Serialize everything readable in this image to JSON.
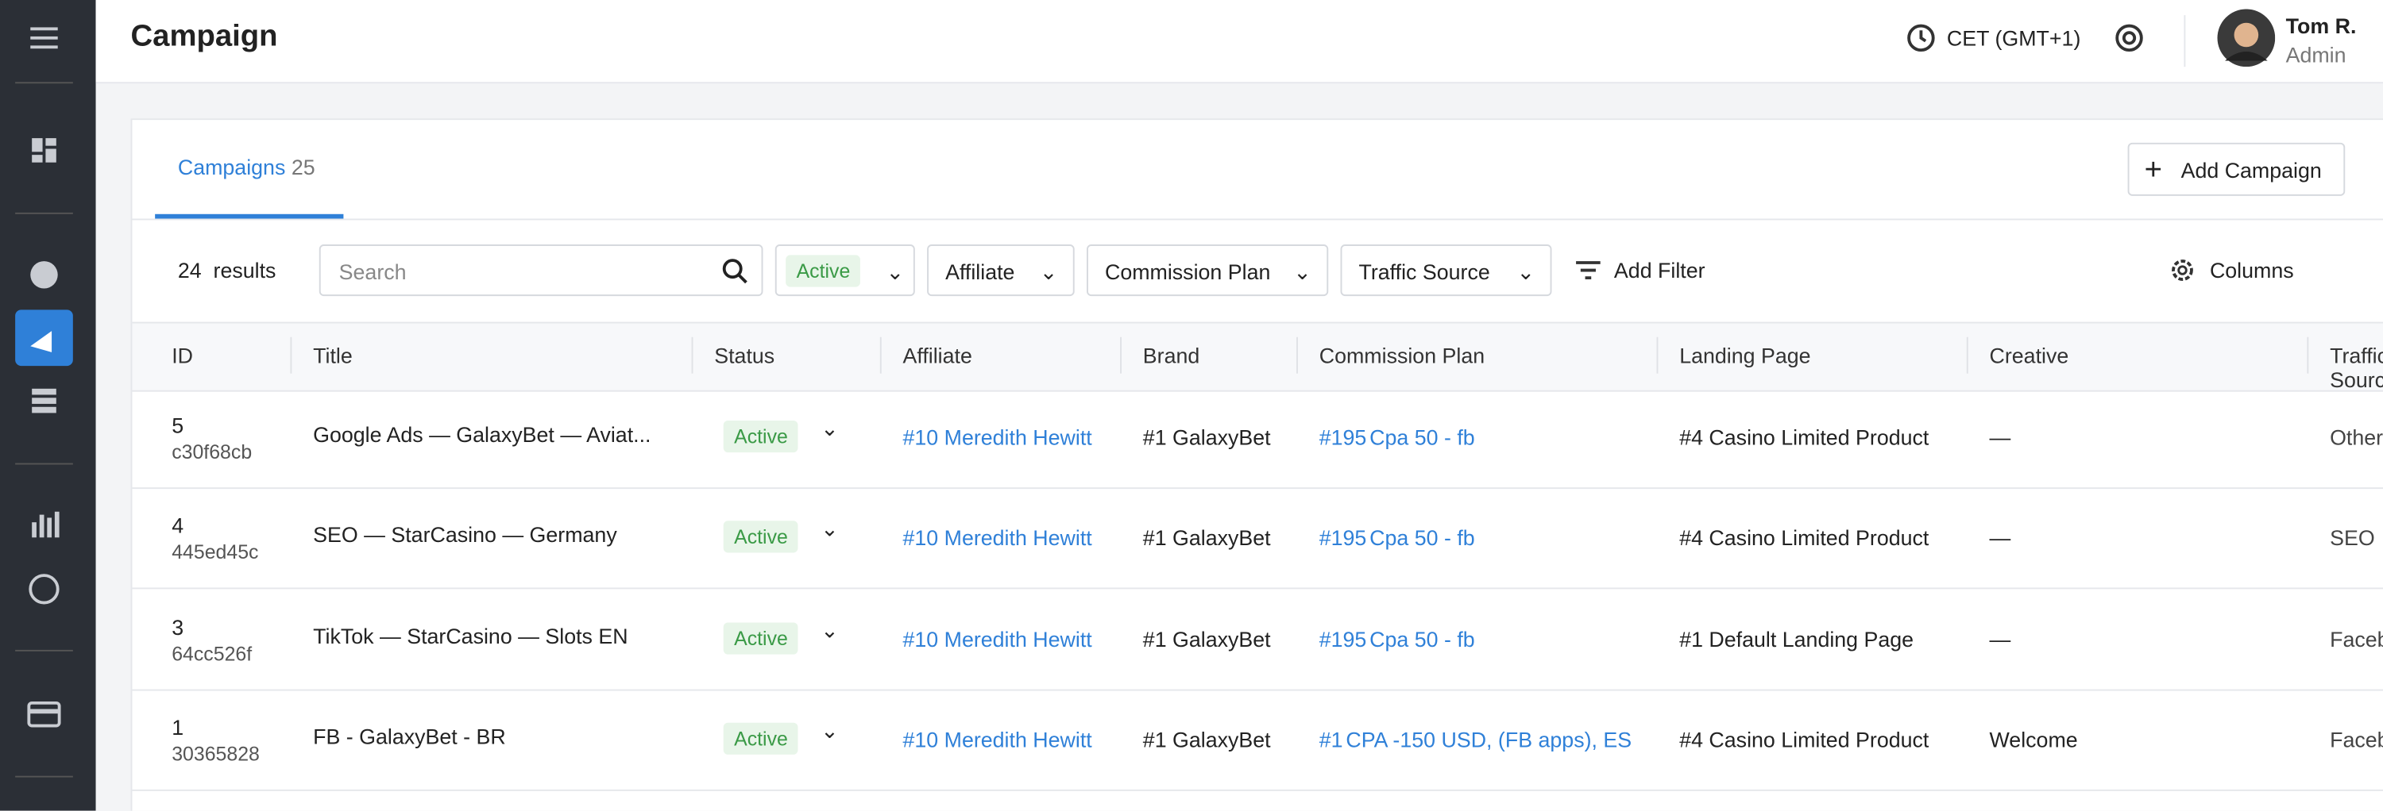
{
  "header": {
    "title": "Campaign",
    "timezone": "CET (GMT+1)",
    "user_name": "Tom R.",
    "user_role": "Admin"
  },
  "tabs": {
    "label": "Campaigns",
    "count": "25"
  },
  "add_button": "Add Campaign",
  "toolbar": {
    "results_count": "24",
    "results_label": "results",
    "search_placeholder": "Search",
    "status_filter": "Active",
    "filters": [
      "Affiliate",
      "Commission Plan",
      "Traffic Source"
    ],
    "add_filter": "Add Filter",
    "columns": "Columns"
  },
  "table": {
    "columns": [
      "ID",
      "Title",
      "Status",
      "Affiliate",
      "Brand",
      "Commission Plan",
      "Landing Page",
      "Creative",
      "Traffic Source"
    ],
    "rows": [
      {
        "id": "5",
        "code": "c30f68cb",
        "title": "Google Ads — GalaxyBet — Aviat...",
        "status": "Active",
        "affiliate": "#10 Meredith Hewitt",
        "brand": "#1 GalaxyBet",
        "plan_id": "#195",
        "plan_name": "Cpa 50 - fb",
        "landing": "#4 Casino Limited Product",
        "creative": "—",
        "traffic": "Other"
      },
      {
        "id": "4",
        "code": "445ed45c",
        "title": "SEO — StarCasino — Germany",
        "status": "Active",
        "affiliate": "#10 Meredith Hewitt",
        "brand": "#1 GalaxyBet",
        "plan_id": "#195",
        "plan_name": "Cpa 50 - fb",
        "landing": "#4 Casino Limited Product",
        "creative": "—",
        "traffic": "SEO"
      },
      {
        "id": "3",
        "code": "64cc526f",
        "title": "TikTok — StarCasino — Slots EN",
        "status": "Active",
        "affiliate": "#10 Meredith Hewitt",
        "brand": "#1 GalaxyBet",
        "plan_id": "#195",
        "plan_name": "Cpa 50 - fb",
        "landing": "#1 Default Landing Page",
        "creative": "—",
        "traffic": "Facebook"
      },
      {
        "id": "1",
        "code": "30365828",
        "title": "FB - GalaxyBet - BR",
        "status": "Active",
        "affiliate": "#10 Meredith Hewitt",
        "brand": "#1 GalaxyBet",
        "plan_id": "#1",
        "plan_name": "CPA -150 USD, (FB apps), ES",
        "landing": "#4 Casino Limited Product",
        "creative": "Welcome",
        "traffic": "Facebook"
      }
    ]
  }
}
